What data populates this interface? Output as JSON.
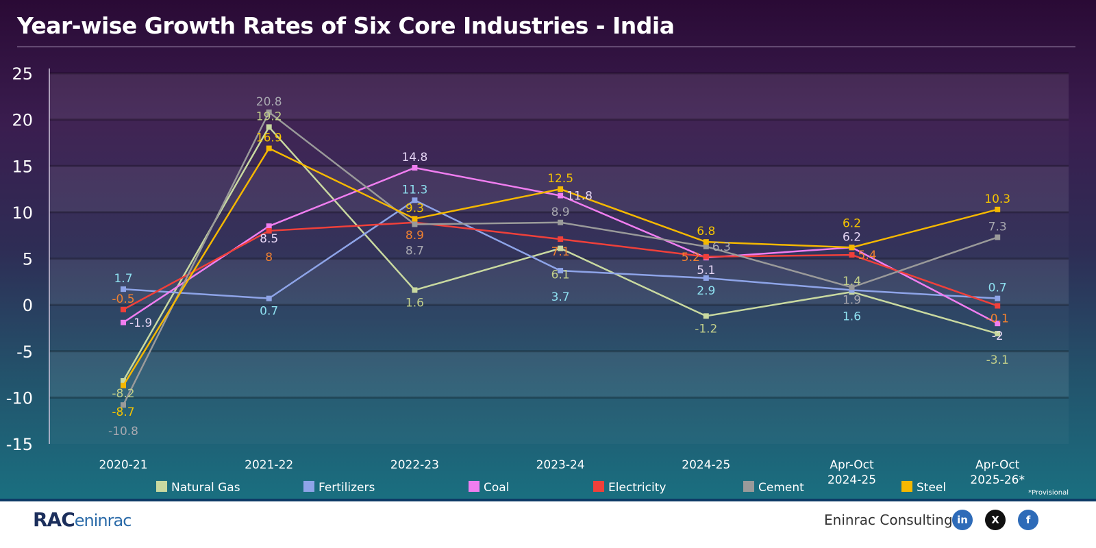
{
  "title": "Year-wise Growth Rates of Six Core Industries - India",
  "footnote": "*Provisional",
  "footer": {
    "logo": "RAC eninrac",
    "company": "Eninrac Consulting",
    "social": [
      {
        "name": "linkedin",
        "label": "in",
        "color": "#2e6bb8"
      },
      {
        "name": "x",
        "label": "X",
        "color": "#111111"
      },
      {
        "name": "facebook",
        "label": "f",
        "color": "#2e6bb8"
      }
    ]
  },
  "chart_data": {
    "type": "line",
    "title": "Year-wise Growth Rates of Six Core Industries - India",
    "categories": [
      "2020-21",
      "2021-22",
      "2022-23",
      "2023-24",
      "2024-25",
      "Apr-Oct 2024-25",
      "Apr-Oct 2025-26*"
    ],
    "ylim": [
      -15,
      25
    ],
    "yticks": [
      25,
      20,
      15,
      10,
      5,
      0,
      -5,
      -10,
      -15
    ],
    "grid": true,
    "legend_position": "bottom",
    "series": [
      {
        "name": "Natural Gas",
        "color": "#c9d9a0",
        "label_color": "#c2cf8a",
        "values": [
          -8.2,
          19.2,
          1.6,
          6.1,
          -1.2,
          1.4,
          -3.1
        ]
      },
      {
        "name": "Fertilizers",
        "color": "#8ea4e8",
        "label_color": "#8ee0f0",
        "values": [
          1.7,
          0.7,
          11.3,
          3.7,
          2.9,
          1.6,
          0.7
        ]
      },
      {
        "name": "Coal",
        "color": "#f07ef0",
        "label_color": "#e6d6f5",
        "values": [
          -1.9,
          8.5,
          14.8,
          11.8,
          5.1,
          6.2,
          -2
        ]
      },
      {
        "name": "Electricity",
        "color": "#f0403a",
        "label_color": "#f08030",
        "values": [
          -0.5,
          8,
          8.9,
          7.1,
          5.2,
          5.4,
          -0.1
        ]
      },
      {
        "name": "Cement",
        "color": "#9a9a9a",
        "label_color": "#a8a8b0",
        "values": [
          -10.8,
          20.8,
          8.7,
          8.9,
          6.3,
          1.9,
          7.3
        ]
      },
      {
        "name": "Steel",
        "color": "#f5b800",
        "label_color": "#f5c400",
        "values": [
          -8.7,
          16.9,
          9.3,
          12.5,
          6.8,
          6.2,
          10.3
        ]
      }
    ]
  }
}
